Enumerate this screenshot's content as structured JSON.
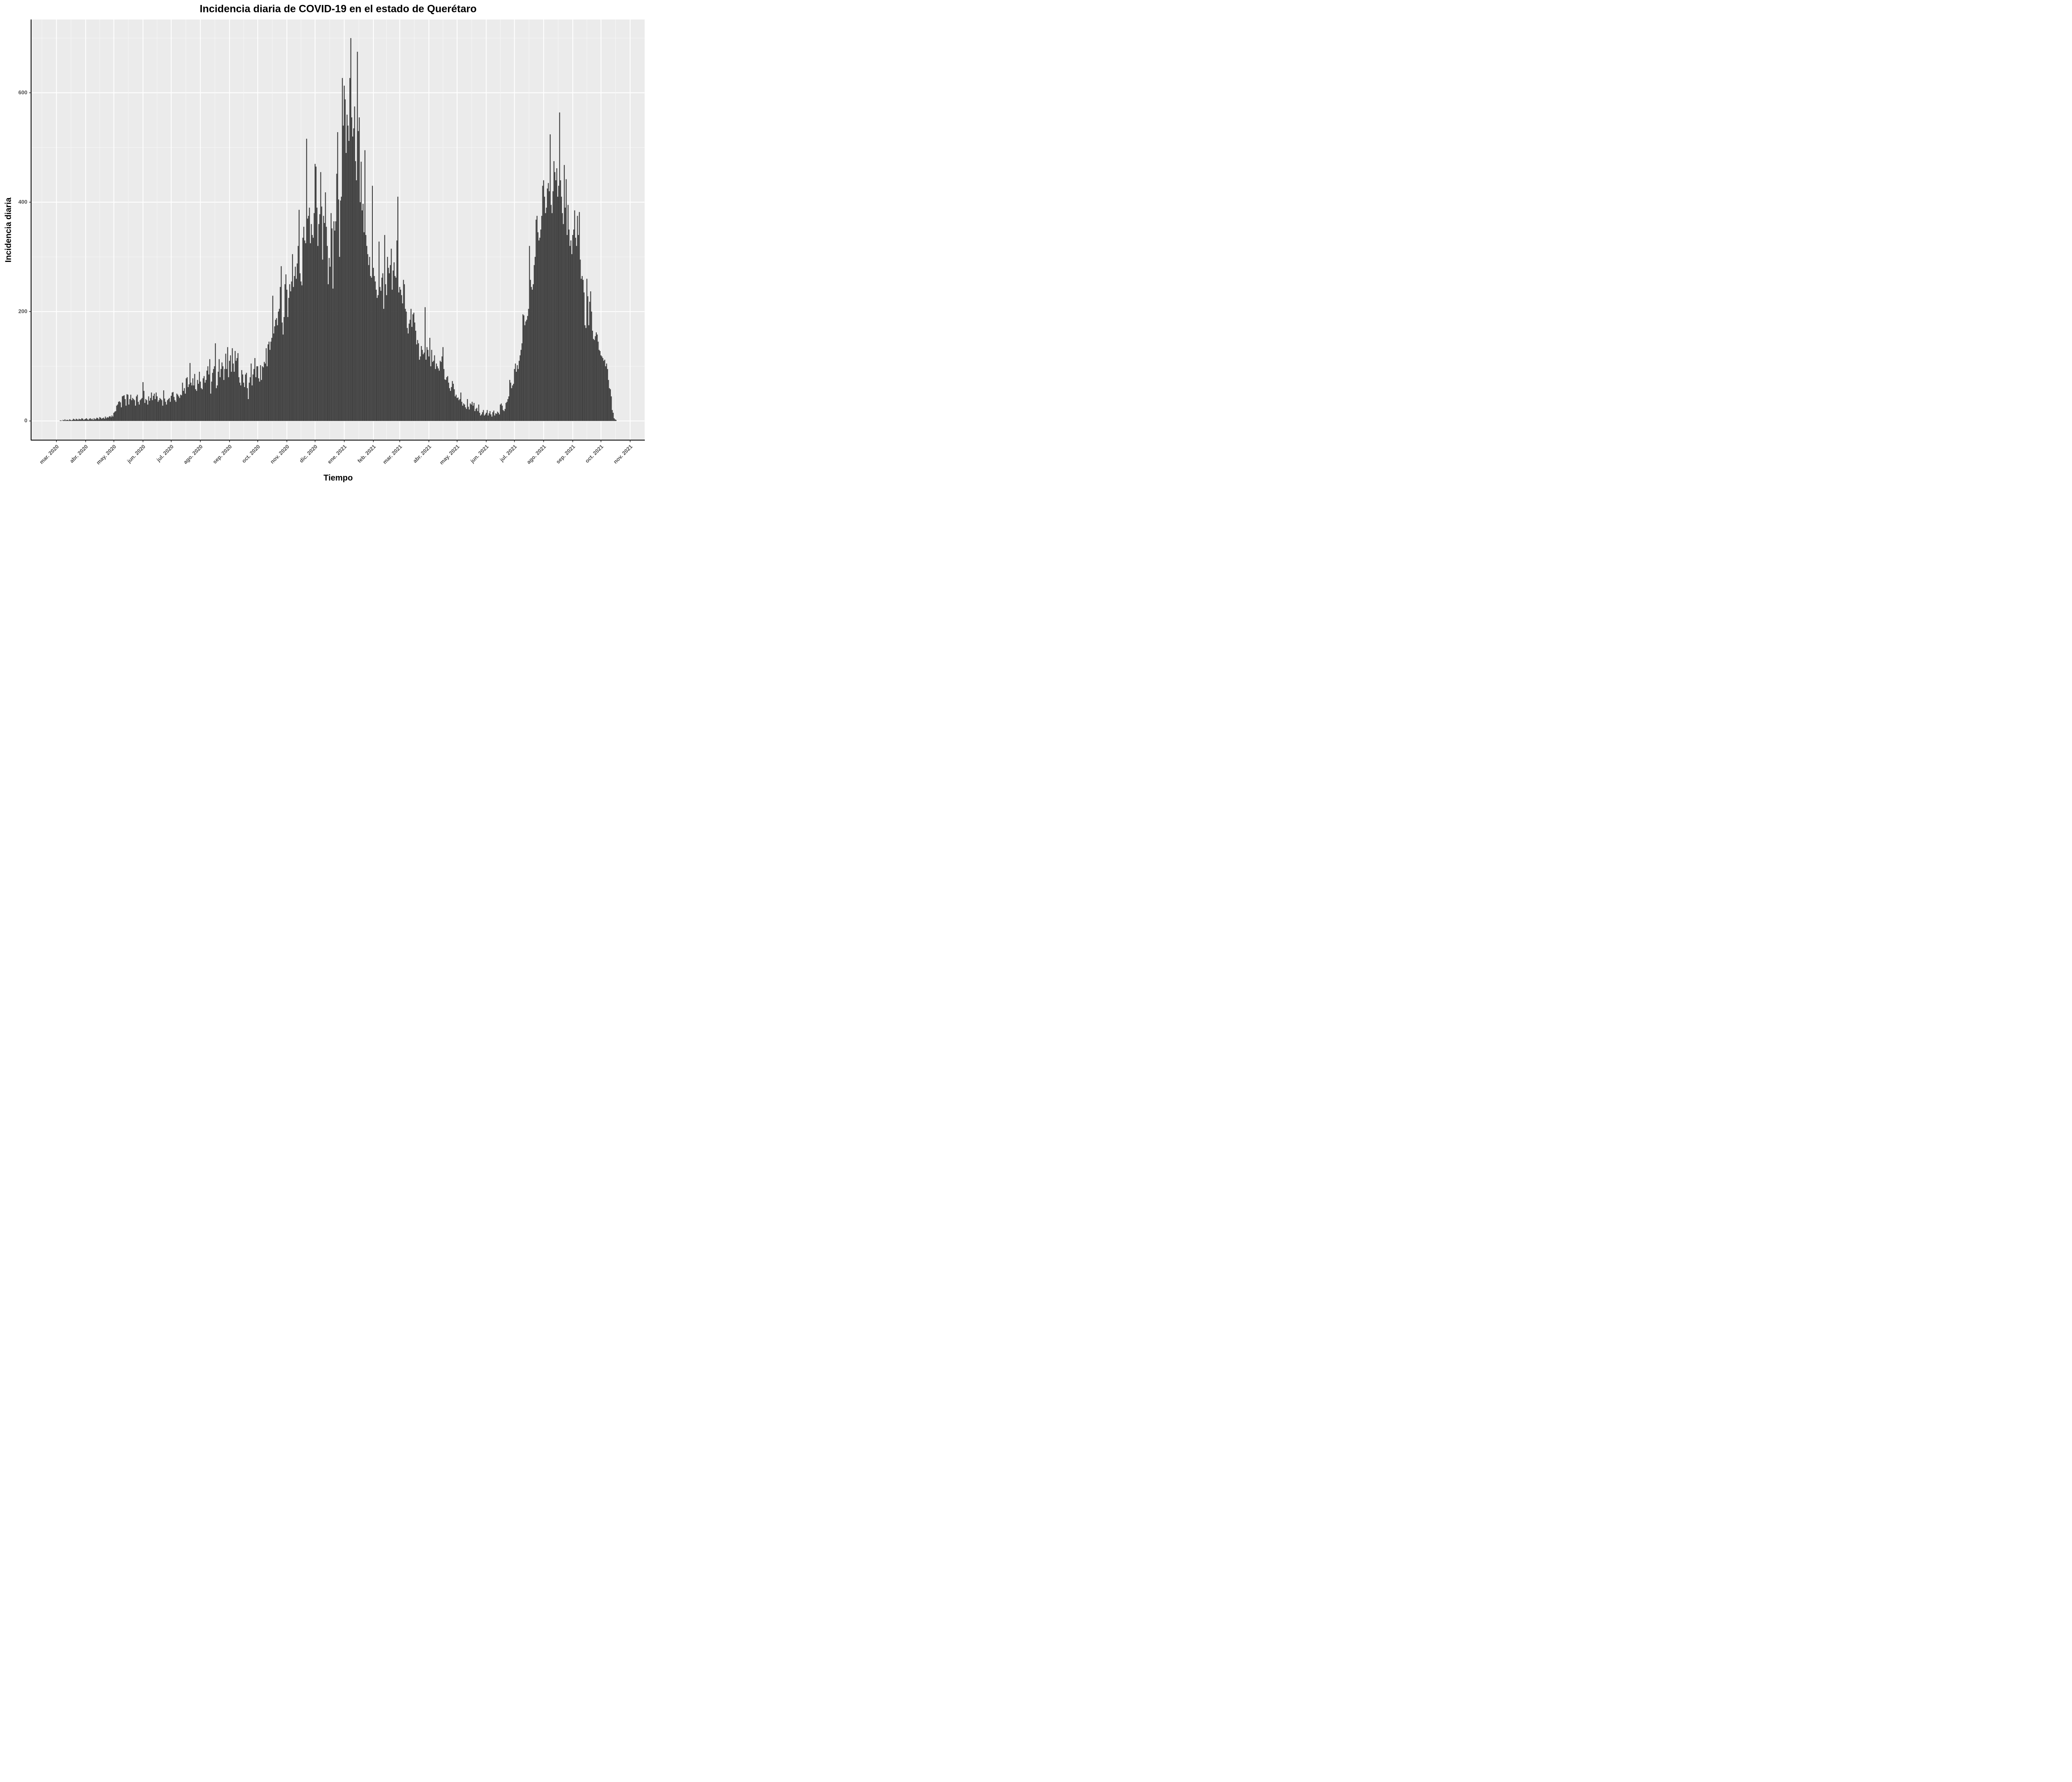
{
  "chart_data": {
    "type": "bar",
    "title": "Incidencia diaria de COVID-19 en el estado de Querétaro",
    "x_label": "Tiempo",
    "y_label": "Incidencia diaria",
    "color": "#424242",
    "grid": true,
    "ylim": [
      -35,
      734
    ],
    "yticks": [
      0,
      200,
      400,
      600
    ],
    "categories": [
      "mar. 2020",
      null,
      null,
      null,
      null,
      null,
      null,
      null,
      null,
      null,
      null,
      null,
      null,
      null,
      null,
      null,
      null,
      null,
      null,
      null,
      null,
      null,
      null,
      null,
      null,
      null,
      null,
      null,
      null,
      null,
      null,
      "abr. 2020",
      null,
      null,
      null,
      null,
      null,
      null,
      null,
      null,
      null,
      null,
      null,
      null,
      null,
      null,
      null,
      null,
      null,
      null,
      null,
      null,
      null,
      null,
      null,
      null,
      null,
      null,
      null,
      null,
      null,
      "may. 2020",
      null,
      null,
      null,
      null,
      null,
      null,
      null,
      null,
      null,
      null,
      null,
      null,
      null,
      null,
      null,
      null,
      null,
      null,
      null,
      null,
      null,
      null,
      null,
      null,
      null,
      null,
      null,
      null,
      null,
      null,
      "jun. 2020",
      null,
      null,
      null,
      null,
      null,
      null,
      null,
      null,
      null,
      null,
      null,
      null,
      null,
      null,
      null,
      null,
      null,
      null,
      null,
      null,
      null,
      null,
      null,
      null,
      null,
      null,
      null,
      null,
      null,
      "jul. 2020",
      null,
      null,
      null,
      null,
      null,
      null,
      null,
      null,
      null,
      null,
      null,
      null,
      null,
      null,
      null,
      null,
      null,
      null,
      null,
      null,
      null,
      null,
      null,
      null,
      null,
      null,
      null,
      null,
      null,
      null,
      "ago. 2020",
      null,
      null,
      null,
      null,
      null,
      null,
      null,
      null,
      null,
      null,
      null,
      null,
      null,
      null,
      null,
      null,
      null,
      null,
      null,
      null,
      null,
      null,
      null,
      null,
      null,
      null,
      null,
      null,
      null,
      null,
      "sep. 2020",
      null,
      null,
      null,
      null,
      null,
      null,
      null,
      null,
      null,
      null,
      null,
      null,
      null,
      null,
      null,
      null,
      null,
      null,
      null,
      null,
      null,
      null,
      null,
      null,
      null,
      null,
      null,
      null,
      null,
      "oct. 2020",
      null,
      null,
      null,
      null,
      null,
      null,
      null,
      null,
      null,
      null,
      null,
      null,
      null,
      null,
      null,
      null,
      null,
      null,
      null,
      null,
      null,
      null,
      null,
      null,
      null,
      null,
      null,
      null,
      null,
      null,
      "nov. 2020",
      null,
      null,
      null,
      null,
      null,
      null,
      null,
      null,
      null,
      null,
      null,
      null,
      null,
      null,
      null,
      null,
      null,
      null,
      null,
      null,
      null,
      null,
      null,
      null,
      null,
      null,
      null,
      null,
      null,
      "dic. 2020",
      null,
      null,
      null,
      null,
      null,
      null,
      null,
      null,
      null,
      null,
      null,
      null,
      null,
      null,
      null,
      null,
      null,
      null,
      null,
      null,
      null,
      null,
      null,
      null,
      null,
      null,
      null,
      null,
      null,
      null,
      "ene. 2021",
      null,
      null,
      null,
      null,
      null,
      null,
      null,
      null,
      null,
      null,
      null,
      null,
      null,
      null,
      null,
      null,
      null,
      null,
      null,
      null,
      null,
      null,
      null,
      null,
      null,
      null,
      null,
      null,
      null,
      null,
      "feb. 2021",
      null,
      null,
      null,
      null,
      null,
      null,
      null,
      null,
      null,
      null,
      null,
      null,
      null,
      null,
      null,
      null,
      null,
      null,
      null,
      null,
      null,
      null,
      null,
      null,
      null,
      null,
      null,
      "mar. 2021",
      null,
      null,
      null,
      null,
      null,
      null,
      null,
      null,
      null,
      null,
      null,
      null,
      null,
      null,
      null,
      null,
      null,
      null,
      null,
      null,
      null,
      null,
      null,
      null,
      null,
      null,
      null,
      null,
      null,
      null,
      "abr. 2021",
      null,
      null,
      null,
      null,
      null,
      null,
      null,
      null,
      null,
      null,
      null,
      null,
      null,
      null,
      null,
      null,
      null,
      null,
      null,
      null,
      null,
      null,
      null,
      null,
      null,
      null,
      null,
      null,
      null,
      "may. 2021",
      null,
      null,
      null,
      null,
      null,
      null,
      null,
      null,
      null,
      null,
      null,
      null,
      null,
      null,
      null,
      null,
      null,
      null,
      null,
      null,
      null,
      null,
      null,
      null,
      null,
      null,
      null,
      null,
      null,
      null,
      "jun. 2021",
      null,
      null,
      null,
      null,
      null,
      null,
      null,
      null,
      null,
      null,
      null,
      null,
      null,
      null,
      null,
      null,
      null,
      null,
      null,
      null,
      null,
      null,
      null,
      null,
      null,
      null,
      null,
      null,
      null,
      "jul. 2021",
      null,
      null,
      null,
      null,
      null,
      null,
      null,
      null,
      null,
      null,
      null,
      null,
      null,
      null,
      null,
      null,
      null,
      null,
      null,
      null,
      null,
      null,
      null,
      null,
      null,
      null,
      null,
      null,
      null,
      null,
      "ago. 2021",
      null,
      null,
      null,
      null,
      null,
      null,
      null,
      null,
      null,
      null,
      null,
      null,
      null,
      null,
      null,
      null,
      null,
      null,
      null,
      null,
      null,
      null,
      null,
      null,
      null,
      null,
      null,
      null,
      null,
      null,
      "sep. 2021",
      null,
      null,
      null,
      null,
      null,
      null,
      null,
      null,
      null,
      null,
      null,
      null,
      null,
      null,
      null,
      null,
      null,
      null,
      null,
      null,
      null,
      null,
      null,
      null,
      null,
      null,
      null,
      null,
      null,
      "oct. 2021",
      null,
      null,
      null,
      null,
      null,
      null,
      null,
      null,
      null,
      null,
      null,
      null,
      null,
      null,
      null,
      null,
      null,
      null,
      null,
      null,
      null,
      null,
      null,
      null,
      null,
      null,
      null,
      null,
      null,
      null,
      "nov. 2021"
    ],
    "values": [
      null,
      null,
      null,
      0,
      1,
      1,
      0,
      2,
      1,
      3,
      1,
      2,
      2,
      1,
      3,
      2,
      1,
      2,
      4,
      3,
      2,
      4,
      3,
      2,
      4,
      3,
      3,
      5,
      4,
      2,
      3,
      4,
      5,
      3,
      2,
      4,
      5,
      3,
      4,
      2,
      5,
      3,
      4,
      6,
      5,
      3,
      7,
      6,
      4,
      5,
      6,
      4,
      8,
      5,
      7,
      6,
      8,
      9,
      7,
      10,
      8,
      15,
      17,
      18,
      28,
      30,
      35,
      36,
      34,
      25,
      45,
      46,
      47,
      40,
      28,
      49,
      48,
      30,
      40,
      48,
      38,
      42,
      40,
      38,
      28,
      45,
      48,
      35,
      30,
      38,
      40,
      42,
      71,
      55,
      33,
      40,
      38,
      30,
      45,
      37,
      42,
      52,
      38,
      46,
      50,
      40,
      52,
      45,
      35,
      38,
      42,
      40,
      38,
      28,
      56,
      41,
      35,
      30,
      38,
      40,
      42,
      35,
      46,
      52,
      53,
      44,
      38,
      35,
      50,
      48,
      45,
      42,
      48,
      47,
      70,
      55,
      60,
      50,
      78,
      80,
      62,
      67,
      106,
      70,
      65,
      78,
      65,
      86,
      58,
      55,
      75,
      68,
      90,
      72,
      60,
      58,
      78,
      82,
      70,
      75,
      92,
      100,
      85,
      113,
      50,
      72,
      88,
      95,
      100,
      142,
      60,
      65,
      90,
      113,
      80,
      95,
      107,
      100,
      75,
      95,
      123,
      95,
      135,
      80,
      110,
      120,
      90,
      133,
      105,
      90,
      128,
      110,
      115,
      124,
      80,
      70,
      65,
      93,
      85,
      70,
      62,
      85,
      88,
      60,
      40,
      70,
      80,
      105,
      65,
      85,
      95,
      115,
      80,
      100,
      100,
      78,
      72,
      102,
      75,
      100,
      98,
      108,
      105,
      133,
      100,
      140,
      145,
      130,
      145,
      152,
      229,
      160,
      173,
      185,
      188,
      175,
      200,
      205,
      245,
      283,
      180,
      158,
      190,
      250,
      268,
      240,
      190,
      225,
      250,
      237,
      255,
      305,
      245,
      265,
      282,
      260,
      288,
      320,
      386,
      270,
      255,
      248,
      335,
      355,
      330,
      325,
      516,
      370,
      375,
      390,
      325,
      360,
      340,
      335,
      380,
      470,
      465,
      390,
      320,
      360,
      378,
      455,
      392,
      295,
      375,
      362,
      418,
      355,
      320,
      250,
      298,
      282,
      380,
      352,
      242,
      365,
      348,
      365,
      452,
      528,
      405,
      300,
      403,
      410,
      627,
      540,
      613,
      588,
      490,
      560,
      540,
      512,
      627,
      700,
      555,
      520,
      535,
      575,
      475,
      440,
      675,
      530,
      555,
      400,
      474,
      385,
      397,
      345,
      495,
      340,
      320,
      305,
      285,
      300,
      265,
      262,
      430,
      280,
      265,
      255,
      240,
      225,
      230,
      328,
      245,
      238,
      262,
      270,
      205,
      340,
      250,
      230,
      300,
      280,
      270,
      285,
      315,
      240,
      275,
      290,
      265,
      262,
      330,
      410,
      235,
      245,
      240,
      230,
      215,
      258,
      250,
      205,
      200,
      170,
      160,
      178,
      185,
      205,
      172,
      195,
      198,
      180,
      165,
      140,
      148,
      142,
      112,
      118,
      137,
      130,
      122,
      125,
      208,
      112,
      135,
      130,
      118,
      152,
      100,
      130,
      108,
      110,
      120,
      95,
      105,
      100,
      96,
      92,
      110,
      108,
      118,
      135,
      95,
      76,
      75,
      80,
      82,
      70,
      60,
      55,
      62,
      73,
      68,
      58,
      45,
      48,
      42,
      43,
      38,
      40,
      52,
      35,
      28,
      32,
      30,
      25,
      22,
      40,
      26,
      21,
      32,
      30,
      35,
      28,
      33,
      18,
      22,
      24,
      18,
      30,
      15,
      10,
      12,
      16,
      20,
      10,
      12,
      15,
      20,
      10,
      14,
      18,
      12,
      8,
      16,
      19,
      10,
      14,
      13,
      17,
      15,
      12,
      30,
      32,
      28,
      20,
      18,
      22,
      33,
      35,
      40,
      45,
      75,
      70,
      60,
      65,
      68,
      95,
      105,
      90,
      102,
      95,
      110,
      120,
      130,
      142,
      195,
      193,
      175,
      182,
      185,
      192,
      205,
      320,
      258,
      245,
      240,
      250,
      285,
      300,
      368,
      375,
      345,
      330,
      335,
      350,
      375,
      430,
      440,
      410,
      380,
      390,
      425,
      435,
      420,
      524,
      395,
      380,
      420,
      475,
      455,
      440,
      462,
      410,
      430,
      564,
      440,
      410,
      380,
      360,
      468,
      390,
      442,
      340,
      395,
      350,
      320,
      330,
      305,
      340,
      350,
      385,
      335,
      320,
      375,
      340,
      382,
      295,
      260,
      265,
      258,
      235,
      175,
      170,
      260,
      228,
      175,
      218,
      237,
      200,
      165,
      150,
      148,
      155,
      162,
      158,
      145,
      130,
      128,
      120,
      118,
      115,
      110,
      112,
      100,
      105,
      95,
      75,
      60,
      58,
      45,
      20,
      15,
      5,
      3,
      2,
      null,
      null,
      null,
      null,
      null,
      null,
      null,
      null,
      null,
      null,
      null,
      null,
      null,
      null,
      null
    ]
  }
}
